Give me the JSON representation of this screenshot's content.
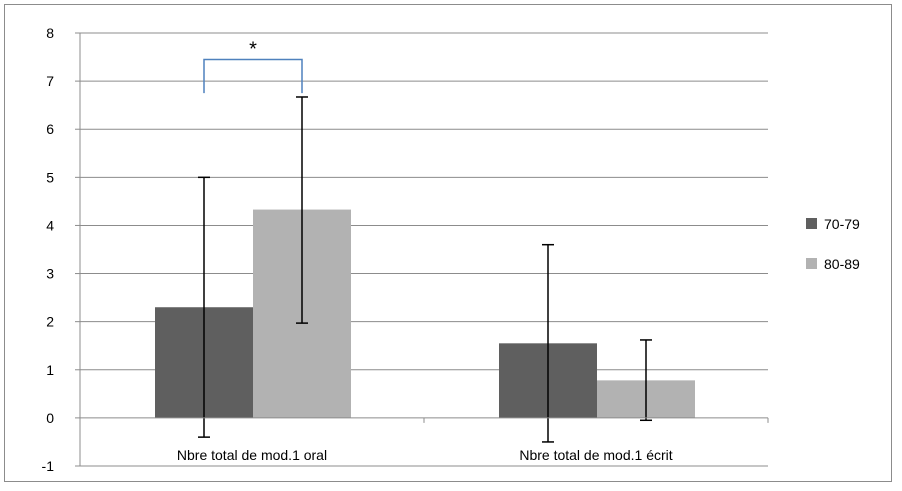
{
  "chart_data": {
    "type": "bar",
    "categories": [
      "Nbre total de mod.1 oral",
      "Nbre total de mod.1 écrit"
    ],
    "series": [
      {
        "name": "70-79",
        "color": "#5f5f5f",
        "values": [
          2.3,
          1.55
        ],
        "err_low": [
          -0.4,
          -0.5
        ],
        "err_high": [
          5.0,
          3.6
        ]
      },
      {
        "name": "80-89",
        "color": "#b2b2b2",
        "values": [
          4.33,
          0.78
        ],
        "err_low": [
          1.97,
          -0.05
        ],
        "err_high": [
          6.67,
          1.62
        ]
      }
    ],
    "ylim": [
      -1,
      8
    ],
    "yticks": [
      "-1",
      "0",
      "1",
      "2",
      "3",
      "4",
      "5",
      "6",
      "7",
      "8"
    ],
    "grid": true,
    "legend_position": "right",
    "annotation": {
      "text": "*",
      "color": "#4f81bd",
      "category_index": 0
    }
  }
}
